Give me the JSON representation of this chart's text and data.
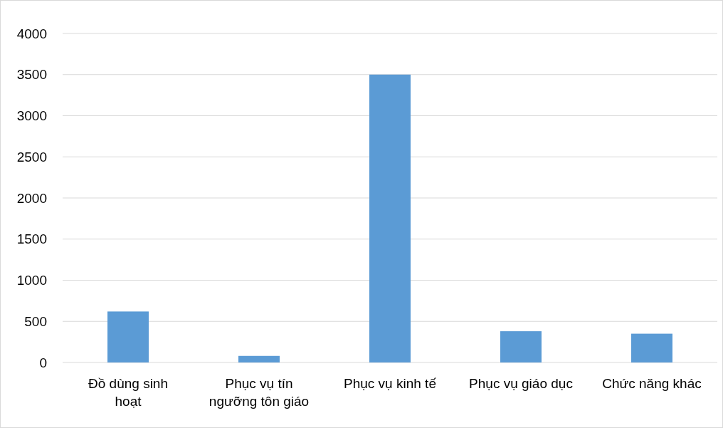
{
  "chart_data": {
    "type": "bar",
    "categories": [
      "Đồ dùng sinh hoạt",
      "Phục vụ tín ngưỡng tôn giáo",
      "Phục vụ kinh tế",
      "Phục vụ giáo dục",
      "Chức năng khác"
    ],
    "values": [
      620,
      80,
      3500,
      380,
      350
    ],
    "color": "#5b9bd5",
    "ylim": [
      0,
      4000
    ],
    "yticks": [
      0,
      500,
      1000,
      1500,
      2000,
      2500,
      3000,
      3500,
      4000
    ],
    "grid": "y"
  }
}
